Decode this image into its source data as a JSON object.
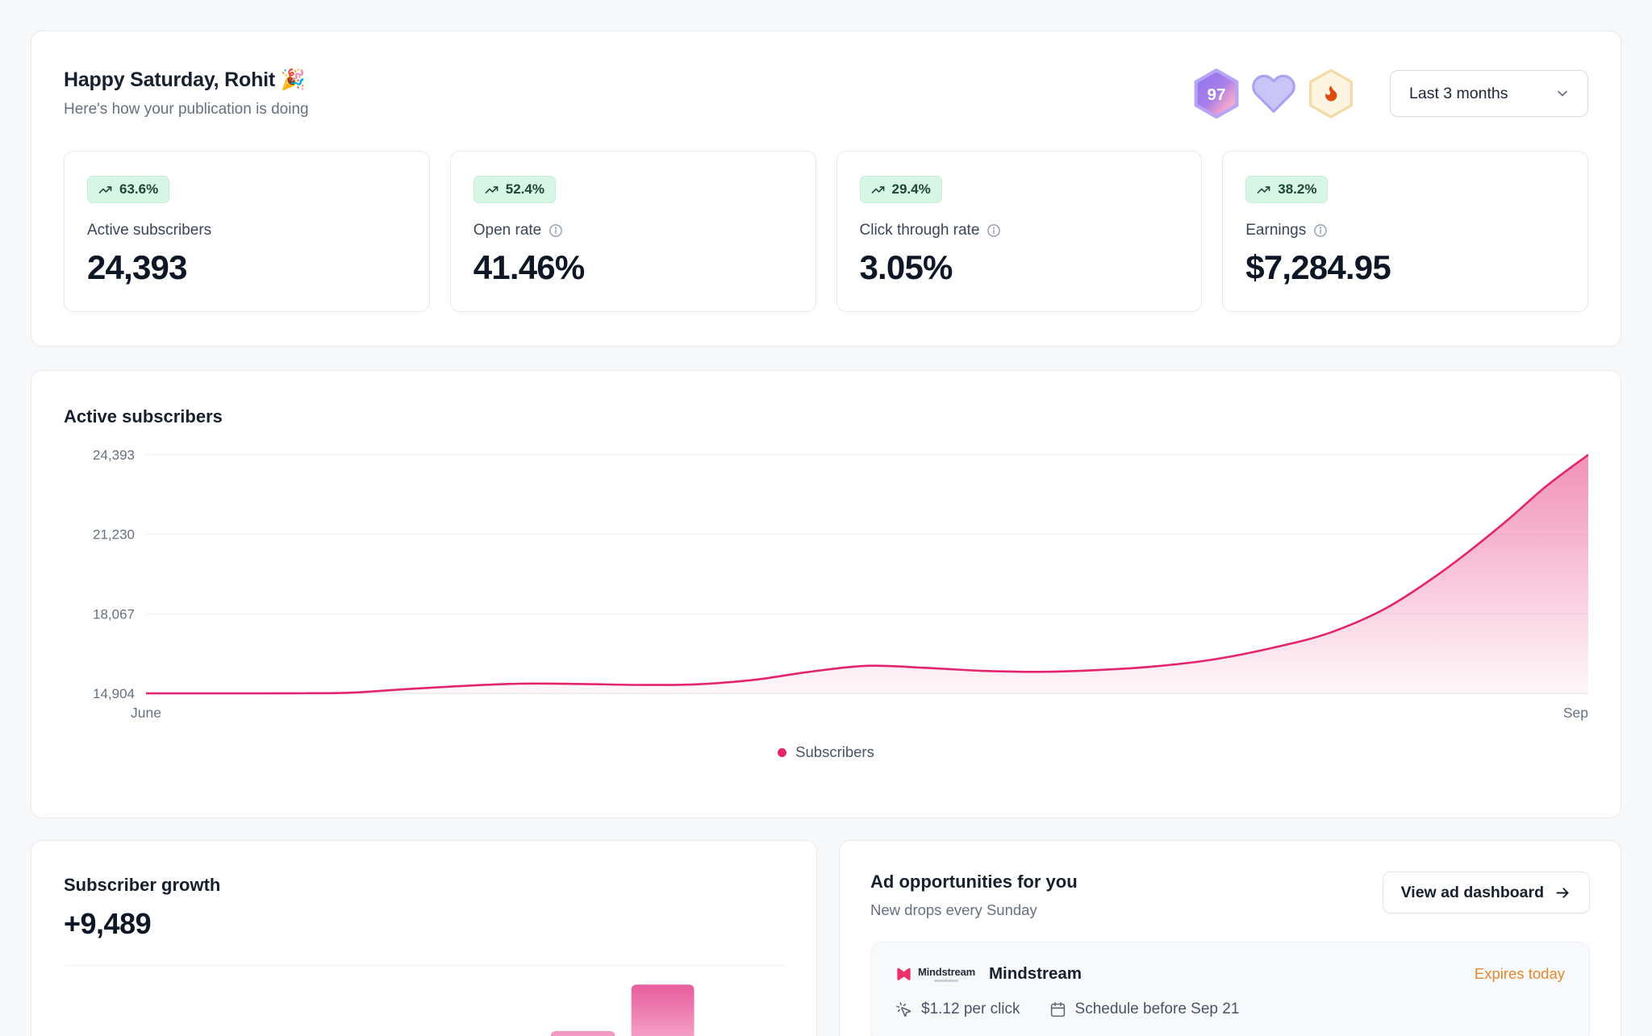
{
  "colors": {
    "page_bg": "#f7f8fa",
    "accent_pink": "#e5246e",
    "trend_badge_bg": "#d8f6e5",
    "trend_badge_text": "#1d4639",
    "expires_orange": "#e8862d",
    "bar_gradient_top": "#e2478f",
    "bar_gradient_bottom": "#f6a3c8"
  },
  "header": {
    "greeting": "Happy Saturday, Rohit 🎉",
    "subtitle": "Here's how your publication is doing",
    "level_badge": "97",
    "badge_icons": [
      "level-hexagon-97",
      "heart-badge",
      "flame-hexagon-badge"
    ],
    "period_selector": "Last 3 months"
  },
  "stats": [
    {
      "trend": "63.6%",
      "label": "Active subscribers",
      "value": "24,393",
      "has_info": false
    },
    {
      "trend": "52.4%",
      "label": "Open rate",
      "value": "41.46%",
      "has_info": true
    },
    {
      "trend": "29.4%",
      "label": "Click through rate",
      "value": "3.05%",
      "has_info": true
    },
    {
      "trend": "38.2%",
      "label": "Earnings",
      "value": "$7,284.95",
      "has_info": true
    }
  ],
  "chart_section": {
    "title": "Active subscribers"
  },
  "chart_data": [
    {
      "type": "area",
      "title": "Active subscribers",
      "ylim": [
        14904,
        24393
      ],
      "y_ticks": [
        "24,393",
        "21,230",
        "18,067",
        "14,904"
      ],
      "y_tick_values": [
        24393,
        21230,
        18067,
        14904
      ],
      "x_ticks": [
        "June",
        "Sep"
      ],
      "grid": true,
      "legend_position": "bottom-center",
      "legend": [
        {
          "label": "Subscribers",
          "color": "#e5246e"
        }
      ],
      "series": [
        {
          "name": "Subscribers",
          "color": "#e5246e",
          "points": [
            [
              0.0,
              14904
            ],
            [
              0.05,
              14904
            ],
            [
              0.1,
              14906
            ],
            [
              0.14,
              14925
            ],
            [
              0.18,
              15070
            ],
            [
              0.22,
              15200
            ],
            [
              0.26,
              15290
            ],
            [
              0.3,
              15280
            ],
            [
              0.34,
              15240
            ],
            [
              0.38,
              15260
            ],
            [
              0.42,
              15430
            ],
            [
              0.46,
              15760
            ],
            [
              0.5,
              16000
            ],
            [
              0.54,
              15920
            ],
            [
              0.58,
              15800
            ],
            [
              0.62,
              15760
            ],
            [
              0.66,
              15830
            ],
            [
              0.7,
              15980
            ],
            [
              0.74,
              16250
            ],
            [
              0.78,
              16700
            ],
            [
              0.82,
              17300
            ],
            [
              0.86,
              18300
            ],
            [
              0.9,
              19800
            ],
            [
              0.94,
              21600
            ],
            [
              0.97,
              23100
            ],
            [
              1.0,
              24393
            ]
          ]
        }
      ]
    },
    {
      "type": "bar",
      "title": "Subscriber growth",
      "note": "chart cropped at bottom edge of screenshot; only two partial bars visible",
      "color_top": "#e2478f",
      "color_bottom": "#f6a3c8",
      "bars": [
        {
          "x_frac": 0.676,
          "width_frac": 0.0894,
          "visible_height_frac": 0.13
        },
        {
          "x_frac": 0.788,
          "width_frac": 0.0872,
          "visible_height_frac": 0.75
        }
      ]
    }
  ],
  "growth": {
    "title": "Subscriber growth",
    "value": "+9,489"
  },
  "ads": {
    "title": "Ad opportunities for you",
    "subtitle": "New drops every Sunday",
    "button": "View ad dashboard",
    "item": {
      "logo_text": "Mindstream",
      "name": "Mindstream",
      "expires": "Expires today",
      "price": "$1.12 per click",
      "schedule": "Schedule before Sep 21"
    }
  }
}
